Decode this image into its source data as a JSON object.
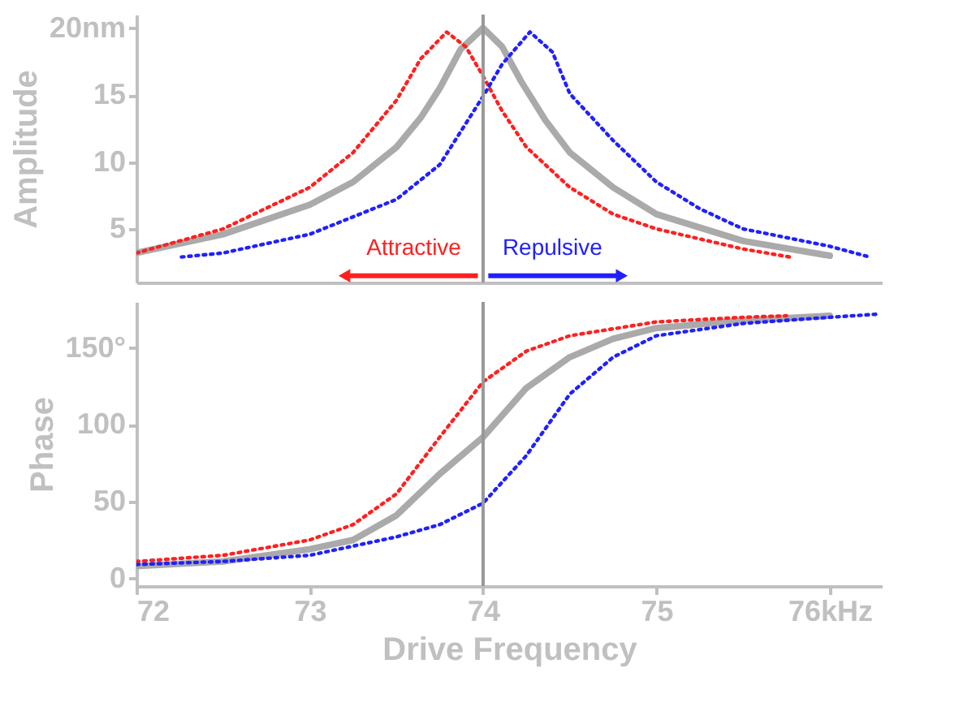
{
  "chart_data": [
    {
      "type": "line",
      "ylabel": "Amplitude",
      "xlim": [
        72,
        76.3
      ],
      "ylim": [
        1,
        21
      ],
      "yticks": [
        5,
        10,
        15,
        {
          "value": 20,
          "label": "20nm"
        }
      ],
      "tick_labels": "y",
      "series": [
        {
          "color": "#ff2020",
          "line_style": "dotted",
          "x": [
            72,
            72.5,
            73,
            73.25,
            73.5,
            73.64,
            73.79,
            73.9,
            74,
            74.11,
            74.25,
            74.5,
            74.75,
            75,
            75.5,
            75.77
          ],
          "values": [
            3.2,
            5.0,
            8.1,
            10.7,
            14.6,
            17.7,
            19.7,
            18.6,
            16.4,
            13.8,
            11.1,
            8.1,
            6.1,
            5.0,
            3.5,
            2.9
          ]
        },
        {
          "color": "#aaaaaa",
          "line_style": "solid",
          "x": [
            72,
            72.5,
            73,
            73.25,
            73.5,
            73.64,
            73.75,
            73.87,
            74,
            74.11,
            74.22,
            74.36,
            74.5,
            74.75,
            75,
            75.5,
            76
          ],
          "values": [
            3.2,
            4.6,
            6.8,
            8.5,
            11.1,
            13.3,
            15.5,
            18.4,
            20,
            18.6,
            16,
            13.1,
            10.7,
            8.1,
            6.1,
            4.1,
            3.0
          ]
        },
        {
          "color": "#2020ff",
          "line_style": "dotted",
          "x": [
            72.26,
            72.5,
            73,
            73.5,
            73.75,
            74,
            74.11,
            74.27,
            74.4,
            74.5,
            74.75,
            75,
            75.25,
            75.5,
            76,
            76.23
          ],
          "values": [
            2.9,
            3.2,
            4.6,
            7.2,
            9.8,
            14.9,
            17.3,
            19.7,
            18.2,
            15.1,
            11.6,
            8.5,
            6.5,
            5.0,
            3.7,
            2.9
          ]
        }
      ],
      "ref_lines": [
        {
          "axis": "x",
          "value": 74,
          "color": "#999999"
        }
      ],
      "annotations": [
        "Attractive",
        "Repulsive"
      ]
    },
    {
      "type": "line",
      "ylabel": "Phase",
      "xlabel": "Drive Frequency",
      "xlim": [
        72,
        76.3
      ],
      "ylim": [
        -5,
        180
      ],
      "xticks": [
        72,
        73,
        74,
        75,
        {
          "value": 76,
          "label": "76kHz"
        }
      ],
      "yticks": [
        0,
        50,
        100,
        {
          "value": 150,
          "label": "150°"
        }
      ],
      "series": [
        {
          "color": "#ff2020",
          "line_style": "dotted",
          "x": [
            72,
            72.5,
            73,
            73.25,
            73.5,
            73.75,
            74,
            74.25,
            74.5,
            75,
            75.5,
            75.75
          ],
          "values": [
            11,
            15,
            25,
            35,
            55,
            92,
            128,
            148,
            158,
            167,
            170,
            171
          ]
        },
        {
          "color": "#aaaaaa",
          "line_style": "solid",
          "x": [
            72,
            72.5,
            73,
            73.25,
            73.5,
            73.75,
            74,
            74.25,
            74.5,
            74.75,
            75,
            75.5,
            76
          ],
          "values": [
            8,
            11,
            19,
            25,
            41,
            68,
            92,
            124,
            144,
            156,
            163,
            168,
            171
          ]
        },
        {
          "color": "#2020ff",
          "line_style": "dotted",
          "x": [
            72,
            72.5,
            73,
            73.5,
            73.75,
            74,
            74.25,
            74.5,
            74.75,
            75,
            75.5,
            76,
            76.27
          ],
          "values": [
            9,
            11,
            15,
            27,
            35,
            49,
            80,
            120,
            144,
            158,
            166,
            170,
            172
          ]
        }
      ],
      "ref_lines": [
        {
          "axis": "x",
          "value": 74,
          "color": "#999999"
        }
      ]
    }
  ]
}
